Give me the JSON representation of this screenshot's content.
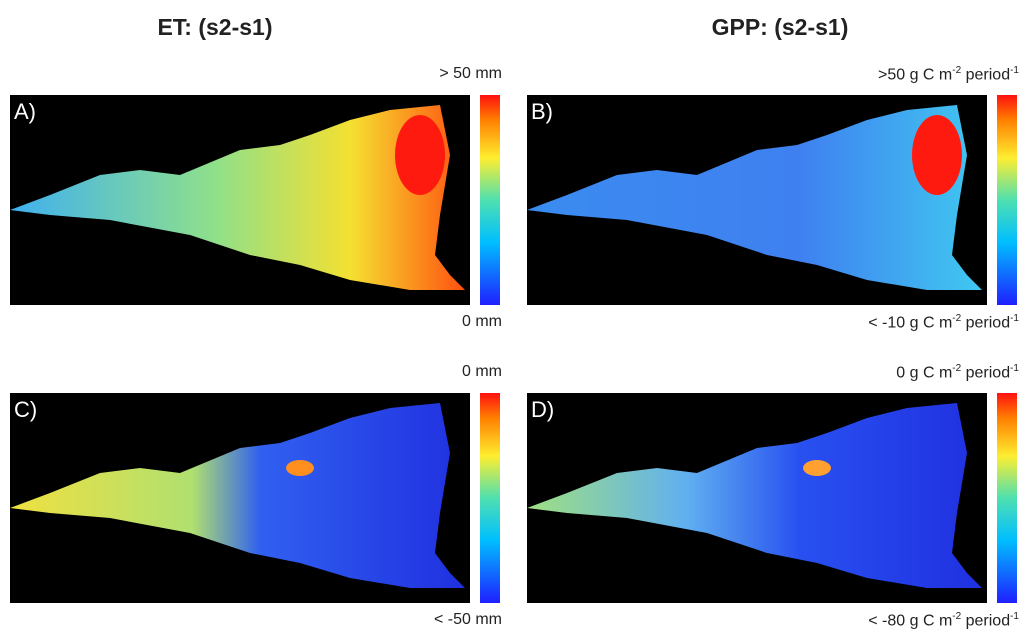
{
  "columns": [
    {
      "title": "ET: (s2-s1)"
    },
    {
      "title": "GPP: (s2-s1)"
    }
  ],
  "panels": [
    {
      "label": "A)",
      "scale_max": [
        "> 50 mm"
      ],
      "scale_min": [
        "0 mm"
      ]
    },
    {
      "label": "B)",
      "scale_max": [
        ">50 g C m",
        "-2",
        " period",
        "-1"
      ],
      "scale_min": [
        "< -10 g C m",
        "-2",
        " period",
        "-1"
      ]
    },
    {
      "label": "C)",
      "scale_max": [
        "0 mm"
      ],
      "scale_min": [
        "< -50 mm"
      ]
    },
    {
      "label": "D)",
      "scale_max": [
        "0 g C m",
        "-2",
        " period",
        "-1"
      ],
      "scale_min": [
        "< -80 g C m",
        "-2",
        " period",
        "-1"
      ]
    }
  ]
}
